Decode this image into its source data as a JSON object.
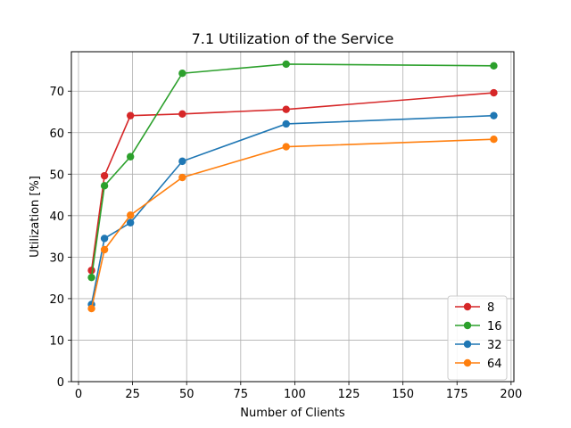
{
  "chart_data": {
    "type": "line",
    "title": "7.1 Utilization of the Service",
    "xlabel": "Number of Clients",
    "ylabel": "Utilization [%]",
    "xlim": [
      -3.3,
      201.3
    ],
    "ylim": [
      0,
      79.5
    ],
    "xticks": [
      0,
      25,
      50,
      75,
      100,
      125,
      150,
      175,
      200
    ],
    "yticks": [
      0,
      10,
      20,
      30,
      40,
      50,
      60,
      70
    ],
    "grid": true,
    "legend_position": "lower-right",
    "x": [
      6,
      12,
      24,
      48,
      96,
      192
    ],
    "series": [
      {
        "name": "8",
        "color": "#d62728",
        "values": [
          26.8,
          49.6,
          64.1,
          64.5,
          65.6,
          69.6
        ]
      },
      {
        "name": "16",
        "color": "#2ca02c",
        "values": [
          25.1,
          47.2,
          54.2,
          74.3,
          76.5,
          76.1
        ]
      },
      {
        "name": "32",
        "color": "#1f77b4",
        "values": [
          18.6,
          34.5,
          38.3,
          53.1,
          62.1,
          64.1
        ]
      },
      {
        "name": "64",
        "color": "#ff7f0e",
        "values": [
          17.6,
          31.8,
          40.1,
          49.2,
          56.6,
          58.4
        ]
      }
    ]
  }
}
